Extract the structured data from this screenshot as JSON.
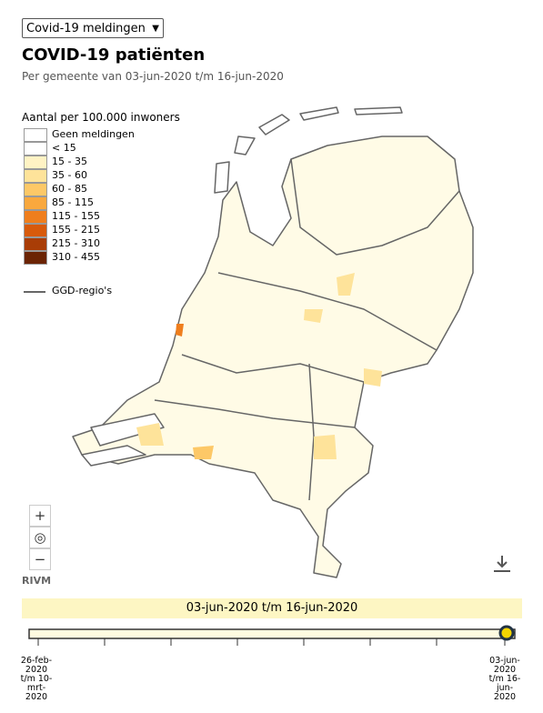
{
  "dropdown": {
    "selected": "Covid-19 meldingen"
  },
  "header": {
    "title": "COVID-19 patiënten",
    "subtitle": "Per gemeente van 03-jun-2020 t/m 16-jun-2020"
  },
  "legend": {
    "title": "Aantal per 100.000 inwoners",
    "items": [
      {
        "label": "Geen meldingen",
        "color": "#ffffff"
      },
      {
        "label": "< 15",
        "color": "#ffffff"
      },
      {
        "label": "15 - 35",
        "color": "#fff3c4"
      },
      {
        "label": "35 - 60",
        "color": "#fee39a"
      },
      {
        "label": "60 - 85",
        "color": "#fdc867"
      },
      {
        "label": "85 - 115",
        "color": "#f9a83e"
      },
      {
        "label": "115 - 155",
        "color": "#ef7e1d"
      },
      {
        "label": "155 - 215",
        "color": "#d85a0b"
      },
      {
        "label": "215 - 310",
        "color": "#a93d06"
      },
      {
        "label": "310 - 455",
        "color": "#6b2404"
      }
    ],
    "region_label": "GGD-regio's"
  },
  "controls": {
    "zoom_in": "+",
    "reset": "◎",
    "zoom_out": "−"
  },
  "source": "RIVM",
  "timeline": {
    "current": "03-jun-2020 t/m 16-jun-2020",
    "start_label": "26-feb-2020 t/m 10-mrt-2020",
    "end_label": "03-jun-2020 t/m 16-jun-2020"
  }
}
